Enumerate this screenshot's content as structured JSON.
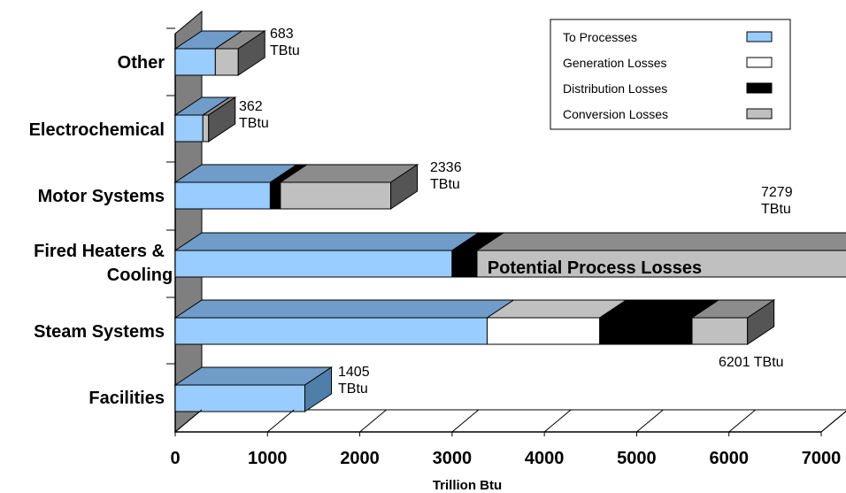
{
  "chart_data": {
    "type": "bar",
    "orientation": "horizontal",
    "stacked": true,
    "style": "3d",
    "categories": [
      "Facilities",
      "Steam Systems",
      "Fired Heaters & Cooling",
      "Motor Systems",
      "Electrochemical",
      "Other"
    ],
    "series": [
      {
        "name": "To Processes",
        "color": "#99ccff",
        "values": [
          1405,
          3380,
          3000,
          1030,
          300,
          435
        ]
      },
      {
        "name": "Generation Losses",
        "color": "#ffffff",
        "values": [
          0,
          1220,
          0,
          0,
          0,
          0
        ]
      },
      {
        "name": "Distribution Losses",
        "color": "#000000",
        "values": [
          0,
          1000,
          270,
          110,
          0,
          0
        ]
      },
      {
        "name": "Conversion Losses",
        "color": "#c0c0c0",
        "values": [
          0,
          601,
          4009,
          1196,
          62,
          248
        ]
      }
    ],
    "total_labels": [
      "1405\nTBtu",
      "6201 TBtu",
      "7279\nTBtu",
      "2336\nTBtu",
      "362\nTBtu",
      "683\nTBtu"
    ],
    "annotation": "Potential Process Losses",
    "xlabel": "Trillion Btu",
    "xlim": [
      0,
      7000
    ],
    "xticks": [
      "0",
      "1000",
      "2000",
      "3000",
      "4000",
      "5000",
      "6000",
      "7000"
    ],
    "legend_position": "top-right",
    "grid": false
  }
}
